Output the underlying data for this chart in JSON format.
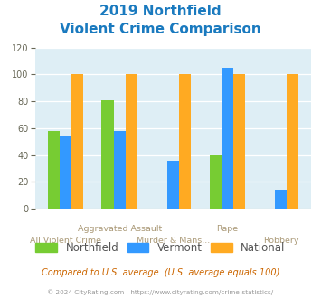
{
  "title_line1": "2019 Northfield",
  "title_line2": "Violent Crime Comparison",
  "northfield": [
    58,
    81,
    0,
    40,
    0
  ],
  "vermont": [
    54,
    58,
    36,
    105,
    14
  ],
  "national": [
    100,
    100,
    100,
    100,
    100
  ],
  "northfield_color": "#77cc33",
  "vermont_color": "#3399ff",
  "national_color": "#ffaa22",
  "title_color": "#1a7abf",
  "bg_color": "#deeef5",
  "ylim": [
    0,
    120
  ],
  "yticks": [
    0,
    20,
    40,
    60,
    80,
    100,
    120
  ],
  "footer_text": "Compared to U.S. average. (U.S. average equals 100)",
  "copyright_text": "© 2024 CityRating.com - https://www.cityrating.com/crime-statistics/",
  "footer_color": "#cc6600",
  "copyright_color": "#999999",
  "bar_width": 0.22,
  "legend_labels": [
    "Northfield",
    "Vermont",
    "National"
  ],
  "top_labels": [
    "",
    "Aggravated Assault",
    "",
    "Rape",
    ""
  ],
  "bot_labels": [
    "All Violent Crime",
    "",
    "Murder & Mans...",
    "",
    "Robbery"
  ],
  "label_color": "#aa9977"
}
